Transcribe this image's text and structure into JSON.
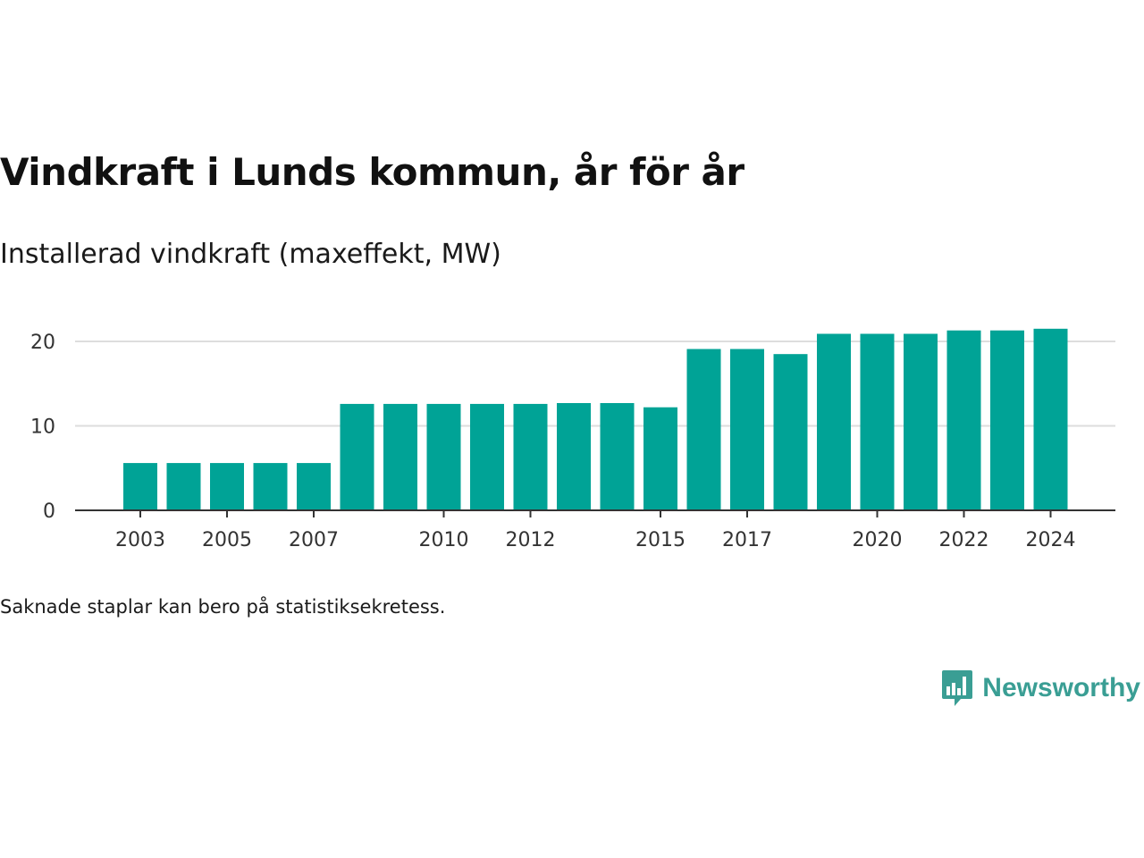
{
  "title": "Vindkraft i Lunds kommun, år för år",
  "subtitle": "Installerad vindkraft (maxeffekt, MW)",
  "note": "Saknade staplar kan bero på statistiksekretess.",
  "brand": {
    "name": "Newsworthy",
    "icon": "bar-chart-speech-bubble-icon",
    "color": "#3a9e94"
  },
  "colors": {
    "bar": "#00a396",
    "grid": "#dddddd",
    "axis": "#333333"
  },
  "chart_data": {
    "type": "bar",
    "title": "Vindkraft i Lunds kommun, år för år",
    "ylabel": "Installerad vindkraft (maxeffekt, MW)",
    "xlabel": "",
    "categories": [
      2003,
      2004,
      2005,
      2006,
      2007,
      2008,
      2009,
      2010,
      2011,
      2012,
      2013,
      2014,
      2015,
      2016,
      2017,
      2018,
      2019,
      2020,
      2021,
      2022,
      2023,
      2024
    ],
    "values": [
      5.6,
      5.6,
      5.6,
      5.6,
      5.6,
      12.6,
      12.6,
      12.6,
      12.6,
      12.6,
      12.7,
      12.7,
      12.2,
      19.1,
      19.1,
      18.5,
      20.9,
      20.9,
      20.9,
      21.3,
      21.3,
      21.5
    ],
    "x_tick_labels": [
      "2003",
      "2005",
      "2007",
      "2010",
      "2012",
      "2015",
      "2017",
      "2020",
      "2022",
      "2024"
    ],
    "y_ticks": [
      0,
      10,
      20
    ],
    "ylim": [
      0,
      22
    ],
    "grid": true,
    "legend": "none"
  }
}
